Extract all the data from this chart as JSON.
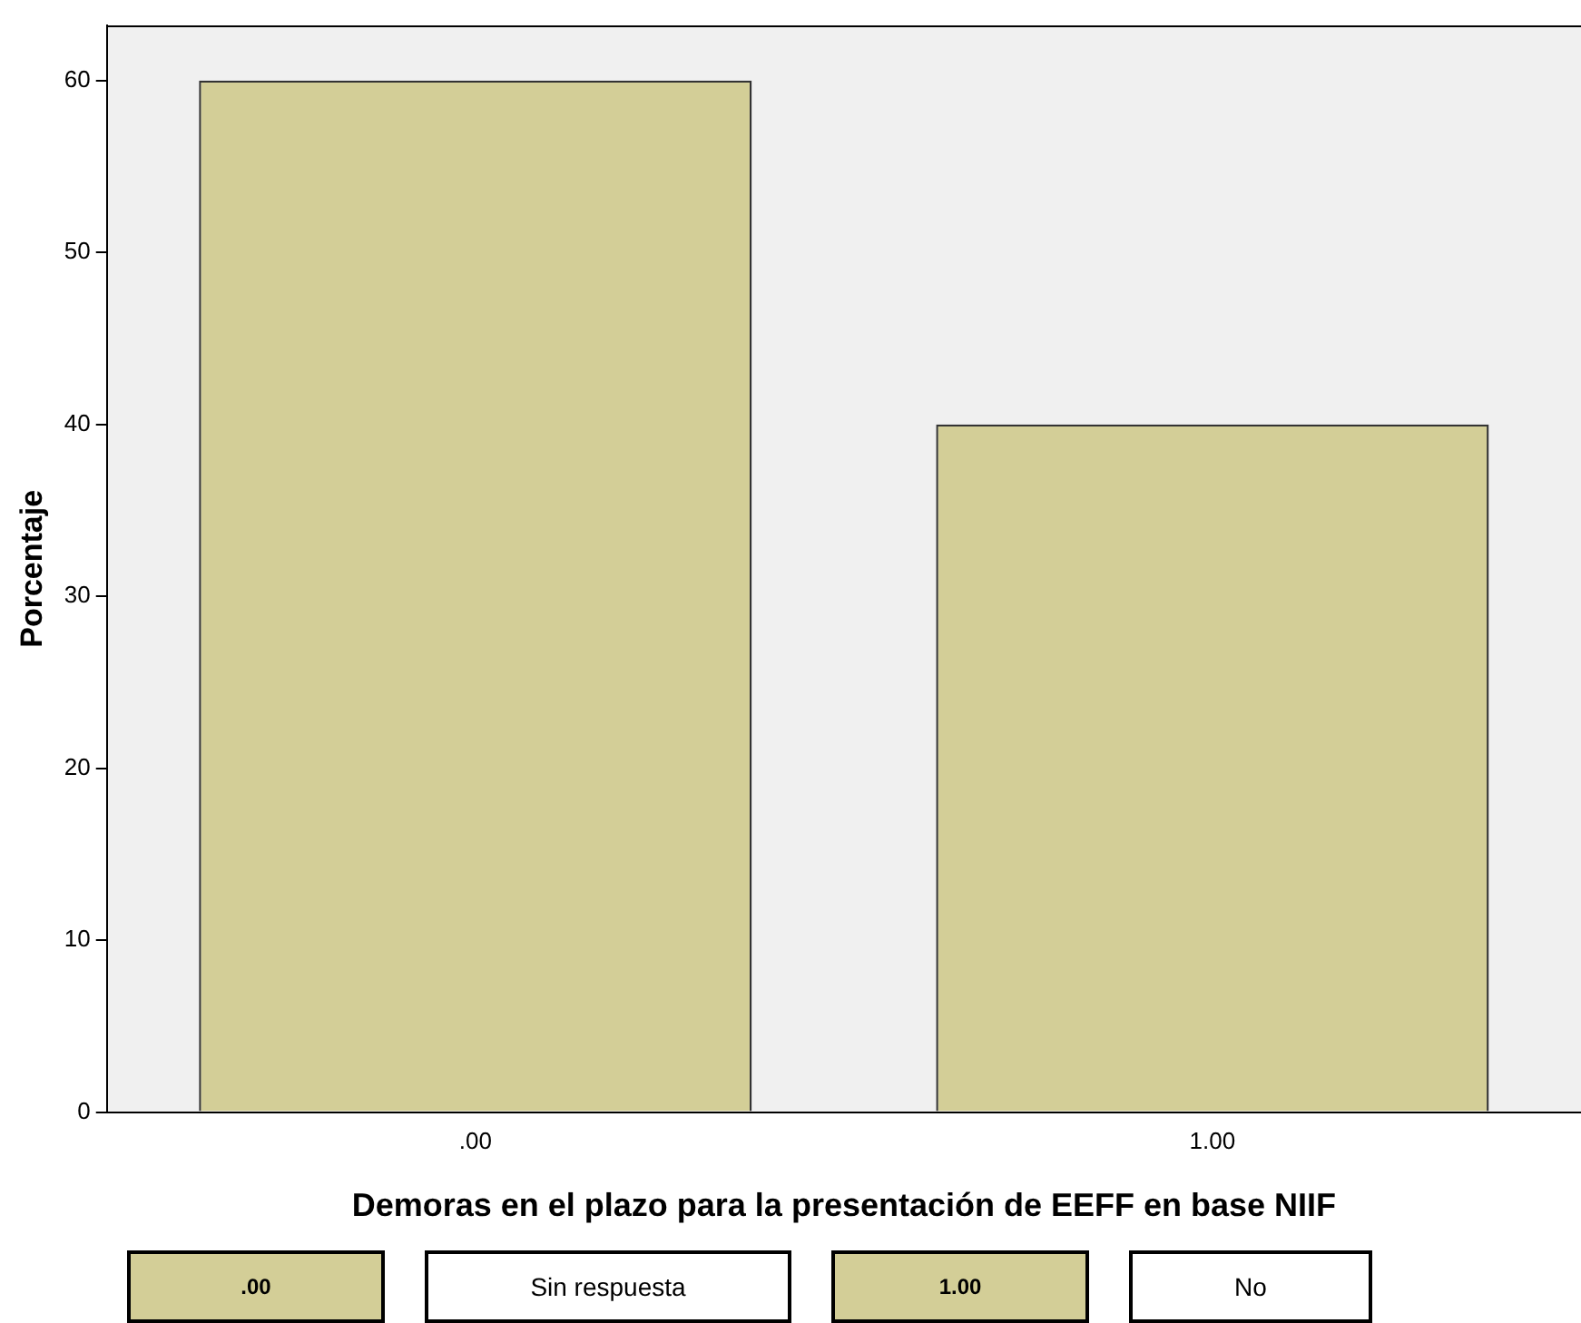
{
  "chart_data": {
    "type": "bar",
    "xlabel": "Demoras en el plazo para la presentación de EEFF en base NIIF",
    "ylabel": "Porcentaje",
    "categories": [
      ".00",
      "1.00"
    ],
    "values": [
      60,
      40
    ],
    "color": "#d3ce97",
    "ylim": [
      0,
      63.2
    ],
    "yticks": [
      0,
      10,
      20,
      30,
      40,
      50,
      60
    ],
    "grid": false,
    "legend": false,
    "annotations": [
      ".00",
      "Sin respuesta",
      "1.00",
      "No"
    ]
  }
}
